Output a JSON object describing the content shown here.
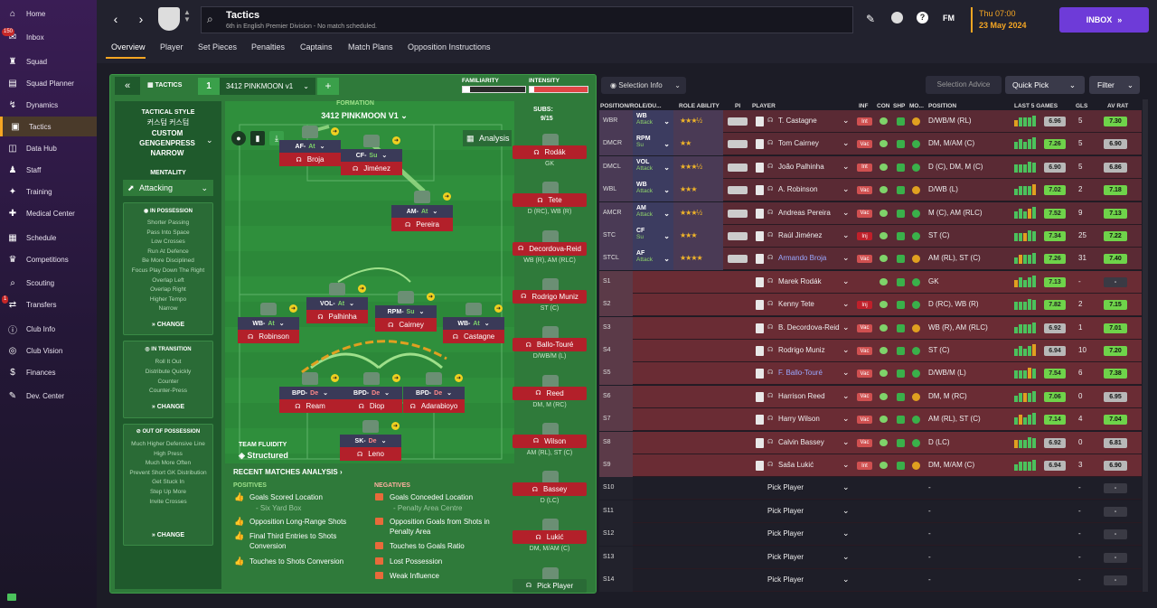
{
  "sidebar": {
    "items": [
      {
        "label": "Home",
        "icon": "home-icon"
      },
      {
        "label": "Inbox",
        "icon": "inbox-icon",
        "badge": "150"
      },
      {
        "label": "Squad",
        "icon": "shirt-icon"
      },
      {
        "label": "Squad Planner",
        "icon": "planner-icon"
      },
      {
        "label": "Dynamics",
        "icon": "dynamics-icon"
      },
      {
        "label": "Tactics",
        "icon": "tactics-icon",
        "active": true
      },
      {
        "label": "Data Hub",
        "icon": "datahub-icon"
      },
      {
        "label": "Staff",
        "icon": "staff-icon"
      },
      {
        "label": "Training",
        "icon": "training-icon"
      },
      {
        "label": "Medical Center",
        "icon": "medical-icon"
      },
      {
        "label": "Schedule",
        "icon": "calendar-icon"
      },
      {
        "label": "Competitions",
        "icon": "trophy-icon"
      },
      {
        "label": "Scouting",
        "icon": "scouting-icon"
      },
      {
        "label": "Transfers",
        "icon": "transfers-icon",
        "badge": "1"
      },
      {
        "label": "Club Info",
        "icon": "clubinfo-icon"
      },
      {
        "label": "Club Vision",
        "icon": "vision-icon"
      },
      {
        "label": "Finances",
        "icon": "finances-icon"
      },
      {
        "label": "Dev. Center",
        "icon": "devcenter-icon"
      }
    ]
  },
  "header": {
    "title": "Tactics",
    "subtitle": "6th in English Premier Division - No match scheduled.",
    "date_day": "Thu 07:00",
    "date": "23 May 2024",
    "inbox": "INBOX",
    "fm": "FM"
  },
  "tabs": [
    "Overview",
    "Player",
    "Set Pieces",
    "Penalties",
    "Captains",
    "Match Plans",
    "Opposition Instructions"
  ],
  "tactics": {
    "label": "TACTICS",
    "slot": "1",
    "name": "3412 PINKMOON v1",
    "familiarity": "FAMILIARITY",
    "intensity": "INTENSITY",
    "style_label": "TACTICAL STYLE",
    "style_custom": "커스텀 커스텀",
    "style_name": "CUSTOM GENGENPRESS NARROW",
    "mentality_label": "MENTALITY",
    "mentality": "Attacking",
    "formation_label": "FORMATION",
    "formation": "3412 PINKMOON V1",
    "analysis": "Analysis",
    "subs_label": "SUBS:",
    "subs_count": "9/15",
    "fluidity_label": "TEAM FLUIDITY",
    "fluidity": "Structured"
  },
  "in_possession": {
    "title": "IN POSSESSION",
    "items": [
      "Shorter Passing",
      "Pass Into Space",
      "Low Crosses",
      "Run At Defence",
      "Be More Disciplined",
      "Focus Play Down The Right",
      "Overlap Left",
      "Overlap Right",
      "Higher Tempo",
      "Narrow"
    ],
    "change": "CHANGE"
  },
  "in_transition": {
    "title": "IN TRANSITION",
    "items": [
      "Roll It Out",
      "Distribute Quickly",
      "Counter",
      "Counter-Press"
    ],
    "change": "CHANGE"
  },
  "out_possession": {
    "title": "OUT OF POSSESSION",
    "items": [
      "Much Higher Defensive Line",
      "High Press",
      "Much More Often",
      "Prevent Short GK Distribution",
      "Get Stuck In",
      "Step Up More",
      "Invite Crosses"
    ],
    "change": "CHANGE"
  },
  "pitch": [
    {
      "pos": "AF",
      "duty": "At",
      "name": "Broja"
    },
    {
      "pos": "CF",
      "duty": "Su",
      "name": "Jiménez"
    },
    {
      "pos": "AM",
      "duty": "At",
      "name": "Pereira"
    },
    {
      "pos": "VOL",
      "duty": "At",
      "name": "Palhinha"
    },
    {
      "pos": "RPM",
      "duty": "Su",
      "name": "Cairney"
    },
    {
      "pos": "WB",
      "duty": "At",
      "name": "Robinson"
    },
    {
      "pos": "WB",
      "duty": "At",
      "name": "Castagne"
    },
    {
      "pos": "BPD",
      "duty": "De",
      "name": "Ream"
    },
    {
      "pos": "BPD",
      "duty": "De",
      "name": "Diop"
    },
    {
      "pos": "BPD",
      "duty": "De",
      "name": "Adarabioyo"
    },
    {
      "pos": "SK",
      "duty": "De",
      "name": "Leno"
    }
  ],
  "subs": [
    {
      "name": "Rodák",
      "pos": "GK"
    },
    {
      "name": "Tete",
      "pos": "D (RC), WB (R)"
    },
    {
      "name": "Decordova-Reid",
      "pos": "WB (R), AM (RLC)"
    },
    {
      "name": "Rodrigo Muniz",
      "pos": "ST (C)"
    },
    {
      "name": "Ballo-Touré",
      "pos": "D/WB/M (L)"
    },
    {
      "name": "Reed",
      "pos": "DM, M (RC)"
    },
    {
      "name": "Wilson",
      "pos": "AM (RL), ST (C)"
    },
    {
      "name": "Bassey",
      "pos": "D (LC)"
    },
    {
      "name": "Lukić",
      "pos": "DM, M/AM (C)"
    },
    {
      "name": "Pick Player",
      "pos": ""
    }
  ],
  "recent": {
    "title": "RECENT MATCHES ANALYSIS",
    "pos_label": "POSITIVES",
    "neg_label": "NEGATIVES",
    "positives": [
      "Goals Scored Location",
      "- Six Yard Box",
      "Opposition Long-Range Shots",
      "Final Third Entries to Shots Conversion",
      "Touches to Shots Conversion"
    ],
    "negatives": [
      "Goals Conceded Location",
      "- Penalty Area Centre",
      "Opposition Goals from Shots in Penalty Area",
      "Touches to Goals Ratio",
      "Lost Possession",
      "Weak Influence"
    ]
  },
  "table": {
    "selection_info": "Selection Info",
    "selection_advice": "Selection Advice",
    "quick_pick": "Quick Pick",
    "filter": "Filter",
    "headers": [
      "POSITION/ROLE/DU...",
      "ROLE ABILITY",
      "PI",
      "PLAYER",
      "INF",
      "CON",
      "SHP",
      "MO...",
      "POSITION",
      "LAST 5 GAMES",
      "GLS",
      "AV RAT"
    ],
    "rows": [
      {
        "slot": "WBR",
        "role": "WB",
        "duty": "Attack",
        "stars": "★★★½",
        "player": "T. Castagne",
        "inf": "Int",
        "pos": "D/WB/M (RL)",
        "rat": "6.96",
        "gls": "5",
        "av": "7.30"
      },
      {
        "slot": "DMCR",
        "role": "RPM",
        "duty": "Su",
        "stars": "★★",
        "player": "Tom Cairney",
        "inf": "Vac",
        "pos": "DM, M/AM (C)",
        "rat": "7.26",
        "gls": "5",
        "av": "6.90"
      },
      {
        "slot": "DMCL",
        "role": "VOL",
        "duty": "Attack",
        "stars": "★★★½",
        "player": "João Palhinha",
        "inf": "Int",
        "pos": "D (C), DM, M (C)",
        "rat": "6.90",
        "gls": "5",
        "av": "6.86"
      },
      {
        "slot": "WBL",
        "role": "WB",
        "duty": "Attack",
        "stars": "★★★",
        "player": "A. Robinson",
        "inf": "Vac",
        "pos": "D/WB (L)",
        "rat": "7.02",
        "gls": "2",
        "av": "7.18"
      },
      {
        "slot": "AMCR",
        "role": "AM",
        "duty": "Attack",
        "stars": "★★★½",
        "player": "Andreas Pereira",
        "inf": "Vac",
        "pos": "M (C), AM (RLC)",
        "rat": "7.52",
        "gls": "9",
        "av": "7.13"
      },
      {
        "slot": "STC",
        "role": "CF",
        "duty": "Su",
        "stars": "★★★",
        "player": "Raúl Jiménez",
        "inf": "Inj",
        "pos": "ST (C)",
        "rat": "7.34",
        "gls": "25",
        "av": "7.22"
      },
      {
        "slot": "STCL",
        "role": "AF",
        "duty": "Attack",
        "stars": "★★★★",
        "player": "Armando Broja",
        "inf": "Vac",
        "pos": "AM (RL), ST (C)",
        "rat": "7.26",
        "gls": "31",
        "av": "7.40"
      },
      {
        "slot": "S1",
        "player": "Marek Rodák",
        "inf": "",
        "pos": "GK",
        "rat": "7.13",
        "gls": "-",
        "av": "-"
      },
      {
        "slot": "S2",
        "player": "Kenny Tete",
        "inf": "Inj",
        "pos": "D (RC), WB (R)",
        "rat": "7.82",
        "gls": "2",
        "av": "7.15"
      },
      {
        "slot": "S3",
        "player": "B. Decordova-Reid",
        "inf": "Vac",
        "pos": "WB (R), AM (RLC)",
        "rat": "6.92",
        "gls": "1",
        "av": "7.01"
      },
      {
        "slot": "S4",
        "player": "Rodrigo Muniz",
        "inf": "Vac",
        "pos": "ST (C)",
        "rat": "6.94",
        "gls": "10",
        "av": "7.20"
      },
      {
        "slot": "S5",
        "player": "F. Ballo-Touré",
        "inf": "Vac",
        "pos": "D/WB/M (L)",
        "rat": "7.54",
        "gls": "6",
        "av": "7.38"
      },
      {
        "slot": "S6",
        "player": "Harrison Reed",
        "inf": "Vac",
        "pos": "DM, M (RC)",
        "rat": "7.06",
        "gls": "0",
        "av": "6.95"
      },
      {
        "slot": "S7",
        "player": "Harry Wilson",
        "inf": "Vac",
        "pos": "AM (RL), ST (C)",
        "rat": "7.14",
        "gls": "4",
        "av": "7.04"
      },
      {
        "slot": "S8",
        "player": "Calvin Bassey",
        "inf": "Vac",
        "pos": "D (LC)",
        "rat": "6.92",
        "gls": "0",
        "av": "6.81"
      },
      {
        "slot": "S9",
        "player": "Saša Lukić",
        "inf": "Int",
        "pos": "DM, M/AM (C)",
        "rat": "6.94",
        "gls": "3",
        "av": "6.90"
      },
      {
        "slot": "S10",
        "player": "Pick Player",
        "pos": "-",
        "gls": "-",
        "av": "-"
      },
      {
        "slot": "S11",
        "player": "Pick Player",
        "pos": "-",
        "gls": "-",
        "av": "-"
      },
      {
        "slot": "S12",
        "player": "Pick Player",
        "pos": "-",
        "gls": "-",
        "av": "-"
      },
      {
        "slot": "S13",
        "player": "Pick Player",
        "pos": "-",
        "gls": "-",
        "av": "-"
      },
      {
        "slot": "S14",
        "player": "Pick Player",
        "pos": "-",
        "gls": "-",
        "av": "-"
      }
    ]
  }
}
